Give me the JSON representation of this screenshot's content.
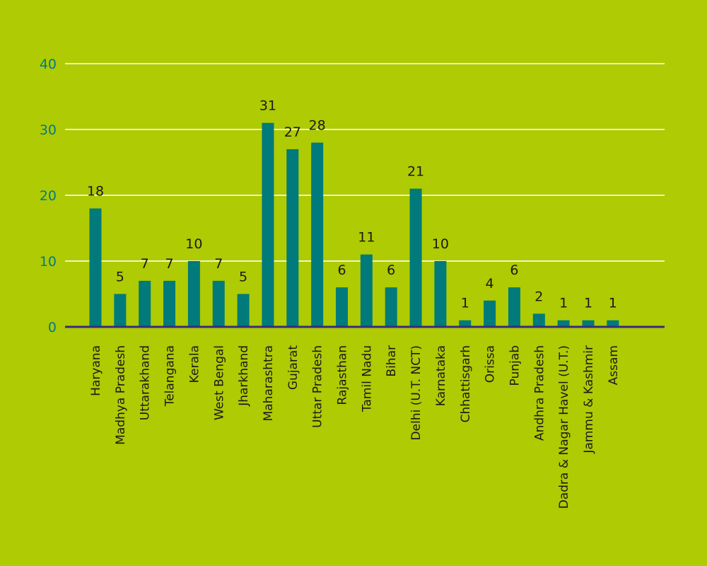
{
  "colors": {
    "background": "#aecb03",
    "bar": "#007a7a",
    "grid": "#eef6c2",
    "baseline": "#3a2a80",
    "ytick_text": "#007a8a",
    "label_text": "#1a1a1a"
  },
  "chart_data": {
    "type": "bar",
    "categories": [
      "Haryana",
      "Madhya Pradesh",
      "Uttarakhand",
      "Telangana",
      "Kerala",
      "West Bengal",
      "Jharkhand",
      "Maharashtra",
      "Gujarat",
      "Uttar Pradesh",
      "Rajasthan",
      "Tamil Nadu",
      "Bihar",
      "Delhi (U.T. NCT)",
      "Karnataka",
      "Chhattisgarh",
      "Orissa",
      "Punjab",
      "Andhra Pradesh",
      "Dadra & Nagar Havel (U.T.)",
      "Jammu & Kashmir",
      "Assam"
    ],
    "values": [
      18,
      5,
      7,
      7,
      10,
      7,
      5,
      31,
      27,
      28,
      6,
      11,
      6,
      21,
      10,
      1,
      4,
      6,
      2,
      1,
      1,
      1
    ],
    "value_labels": [
      "18",
      "5",
      "7",
      "7",
      "10",
      "7",
      "5",
      "31",
      "27",
      "28",
      "6",
      "11",
      "6",
      "21",
      "10",
      "1",
      "4",
      "6",
      "2",
      "1",
      "1",
      "1"
    ],
    "yticks": [
      0,
      10,
      20,
      30,
      40
    ],
    "ytick_labels": [
      "0",
      "10",
      "20",
      "30",
      "40"
    ],
    "ylim": [
      0,
      40
    ],
    "grid": true,
    "title": "",
    "xlabel": "",
    "ylabel": ""
  }
}
